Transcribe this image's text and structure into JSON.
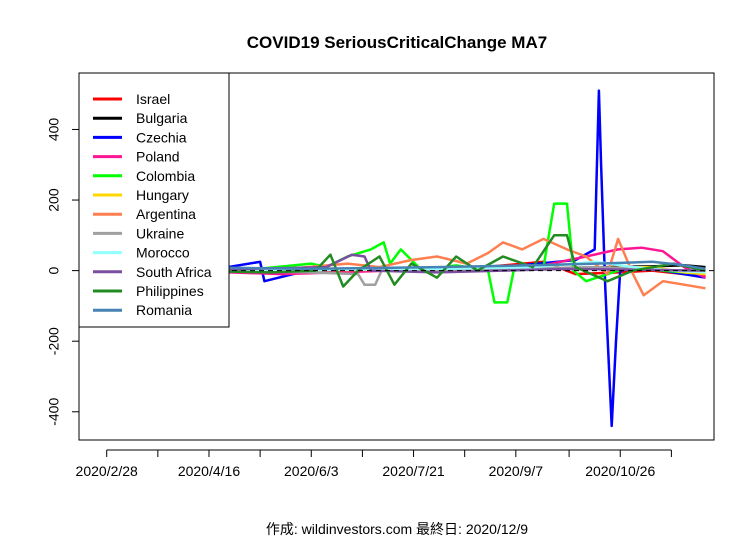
{
  "chart_data": {
    "type": "line",
    "title": "COVID19 SeriousCriticalChange MA7",
    "xlabel": "",
    "ylabel": "",
    "footer": "作成: wildinvestors.com 最終日: 2020/12/9",
    "x_range": [
      "2020-02-15",
      "2020-12-09"
    ],
    "ylim": [
      -480,
      560
    ],
    "x_ticks": [
      {
        "date": "2020-02-28",
        "label": "2020/2/28"
      },
      {
        "date": "2020-04-16",
        "label": "2020/4/16"
      },
      {
        "date": "2020-06-03",
        "label": "2020/6/3"
      },
      {
        "date": "2020-07-21",
        "label": "2020/7/21"
      },
      {
        "date": "2020-09-07",
        "label": "2020/9/7"
      },
      {
        "date": "2020-10-26",
        "label": "2020/10/26"
      }
    ],
    "x_minor_ticks": [
      "2020-03-23",
      "2020-05-10",
      "2020-06-27",
      "2020-08-14",
      "2020-10-02",
      "2020-11-19"
    ],
    "y_ticks": [
      -400,
      -200,
      0,
      200,
      400
    ],
    "reference_line": 0,
    "legend_position": "top-left",
    "series": [
      {
        "name": "Israel",
        "color": "#ff0000",
        "points": [
          [
            "2020-03-15",
            0
          ],
          [
            "2020-05-01",
            2
          ],
          [
            "2020-07-01",
            5
          ],
          [
            "2020-08-20",
            8
          ],
          [
            "2020-09-20",
            25
          ],
          [
            "2020-10-05",
            -10
          ],
          [
            "2020-10-25",
            -5
          ],
          [
            "2020-11-10",
            0
          ],
          [
            "2020-11-25",
            -10
          ],
          [
            "2020-12-05",
            -15
          ]
        ]
      },
      {
        "name": "Bulgaria",
        "color": "#000000",
        "points": [
          [
            "2020-04-01",
            0
          ],
          [
            "2020-07-01",
            2
          ],
          [
            "2020-09-15",
            5
          ],
          [
            "2020-10-20",
            10
          ],
          [
            "2020-11-10",
            12
          ],
          [
            "2020-11-25",
            15
          ],
          [
            "2020-12-05",
            10
          ]
        ]
      },
      {
        "name": "Czechia",
        "color": "#0000ff",
        "points": [
          [
            "2020-03-15",
            0
          ],
          [
            "2020-03-20",
            30
          ],
          [
            "2020-03-25",
            -20
          ],
          [
            "2020-04-01",
            20
          ],
          [
            "2020-04-15",
            0
          ],
          [
            "2020-05-10",
            25
          ],
          [
            "2020-05-12",
            -30
          ],
          [
            "2020-06-01",
            0
          ],
          [
            "2020-09-01",
            10
          ],
          [
            "2020-10-05",
            30
          ],
          [
            "2020-10-14",
            60
          ],
          [
            "2020-10-16",
            510
          ],
          [
            "2020-10-17",
            300
          ],
          [
            "2020-10-19",
            -50
          ],
          [
            "2020-10-22",
            -440
          ],
          [
            "2020-10-24",
            -200
          ],
          [
            "2020-10-26",
            0
          ],
          [
            "2020-11-05",
            10
          ],
          [
            "2020-11-20",
            -5
          ],
          [
            "2020-12-05",
            -20
          ]
        ]
      },
      {
        "name": "Poland",
        "color": "#ff1493",
        "points": [
          [
            "2020-04-01",
            0
          ],
          [
            "2020-05-20",
            -10
          ],
          [
            "2020-06-15",
            -5
          ],
          [
            "2020-08-01",
            5
          ],
          [
            "2020-09-20",
            15
          ],
          [
            "2020-10-10",
            40
          ],
          [
            "2020-10-25",
            60
          ],
          [
            "2020-11-05",
            65
          ],
          [
            "2020-11-15",
            55
          ],
          [
            "2020-11-25",
            10
          ],
          [
            "2020-12-05",
            -20
          ]
        ]
      },
      {
        "name": "Colombia",
        "color": "#00ff00",
        "points": [
          [
            "2020-03-20",
            0
          ],
          [
            "2020-05-01",
            0
          ],
          [
            "2020-06-03",
            20
          ],
          [
            "2020-06-10",
            10
          ],
          [
            "2020-06-20",
            40
          ],
          [
            "2020-07-01",
            60
          ],
          [
            "2020-07-07",
            80
          ],
          [
            "2020-07-10",
            20
          ],
          [
            "2020-07-15",
            60
          ],
          [
            "2020-07-25",
            0
          ],
          [
            "2020-08-10",
            15
          ],
          [
            "2020-08-25",
            0
          ],
          [
            "2020-08-28",
            -90
          ],
          [
            "2020-09-03",
            -90
          ],
          [
            "2020-09-06",
            0
          ],
          [
            "2020-09-20",
            10
          ],
          [
            "2020-09-25",
            190
          ],
          [
            "2020-10-01",
            190
          ],
          [
            "2020-10-04",
            0
          ],
          [
            "2020-10-10",
            -30
          ],
          [
            "2020-10-15",
            -20
          ],
          [
            "2020-10-30",
            10
          ],
          [
            "2020-11-15",
            0
          ],
          [
            "2020-12-05",
            -10
          ]
        ]
      },
      {
        "name": "Hungary",
        "color": "#ffd700",
        "points": [
          [
            "2020-04-01",
            0
          ],
          [
            "2020-07-01",
            2
          ],
          [
            "2020-09-15",
            5
          ],
          [
            "2020-10-20",
            8
          ],
          [
            "2020-11-10",
            10
          ],
          [
            "2020-11-25",
            -5
          ],
          [
            "2020-12-05",
            -10
          ]
        ]
      },
      {
        "name": "Argentina",
        "color": "#ff7f50",
        "points": [
          [
            "2020-05-15",
            0
          ],
          [
            "2020-06-01",
            10
          ],
          [
            "2020-06-20",
            20
          ],
          [
            "2020-07-05",
            10
          ],
          [
            "2020-07-20",
            30
          ],
          [
            "2020-08-01",
            40
          ],
          [
            "2020-08-15",
            20
          ],
          [
            "2020-08-25",
            50
          ],
          [
            "2020-09-01",
            80
          ],
          [
            "2020-09-10",
            60
          ],
          [
            "2020-09-20",
            90
          ],
          [
            "2020-10-01",
            60
          ],
          [
            "2020-10-10",
            40
          ],
          [
            "2020-10-20",
            -10
          ],
          [
            "2020-10-25",
            90
          ],
          [
            "2020-11-01",
            -10
          ],
          [
            "2020-11-06",
            -70
          ],
          [
            "2020-11-15",
            -30
          ],
          [
            "2020-11-25",
            -40
          ],
          [
            "2020-12-05",
            -50
          ]
        ]
      },
      {
        "name": "Ukraine",
        "color": "#a0a0a0",
        "points": [
          [
            "2020-04-20",
            0
          ],
          [
            "2020-06-01",
            -5
          ],
          [
            "2020-06-25",
            -10
          ],
          [
            "2020-06-28",
            -40
          ],
          [
            "2020-07-03",
            -40
          ],
          [
            "2020-07-06",
            0
          ],
          [
            "2020-09-01",
            5
          ],
          [
            "2020-10-15",
            10
          ],
          [
            "2020-11-10",
            5
          ],
          [
            "2020-12-05",
            -5
          ]
        ]
      },
      {
        "name": "Morocco",
        "color": "#90ffff",
        "points": [
          [
            "2020-05-01",
            0
          ],
          [
            "2020-08-01",
            5
          ],
          [
            "2020-09-15",
            10
          ],
          [
            "2020-10-15",
            25
          ],
          [
            "2020-11-01",
            10
          ],
          [
            "2020-11-20",
            0
          ],
          [
            "2020-12-05",
            -5
          ]
        ]
      },
      {
        "name": "South Africa",
        "color": "#7b4fa0",
        "points": [
          [
            "2020-04-01",
            0
          ],
          [
            "2020-06-10",
            10
          ],
          [
            "2020-06-22",
            45
          ],
          [
            "2020-06-28",
            40
          ],
          [
            "2020-07-01",
            0
          ],
          [
            "2020-08-01",
            -5
          ],
          [
            "2020-09-01",
            0
          ],
          [
            "2020-10-01",
            5
          ],
          [
            "2020-12-05",
            0
          ]
        ]
      },
      {
        "name": "Philippines",
        "color": "#228b22",
        "points": [
          [
            "2020-04-01",
            0
          ],
          [
            "2020-05-15",
            -5
          ],
          [
            "2020-06-05",
            0
          ],
          [
            "2020-06-12",
            45
          ],
          [
            "2020-06-18",
            -45
          ],
          [
            "2020-06-25",
            0
          ],
          [
            "2020-07-05",
            40
          ],
          [
            "2020-07-12",
            -40
          ],
          [
            "2020-07-20",
            20
          ],
          [
            "2020-08-01",
            -20
          ],
          [
            "2020-08-10",
            40
          ],
          [
            "2020-08-20",
            0
          ],
          [
            "2020-09-01",
            40
          ],
          [
            "2020-09-15",
            10
          ],
          [
            "2020-09-25",
            100
          ],
          [
            "2020-10-01",
            100
          ],
          [
            "2020-10-05",
            10
          ],
          [
            "2020-10-20",
            -30
          ],
          [
            "2020-11-01",
            0
          ],
          [
            "2020-11-20",
            20
          ],
          [
            "2020-12-05",
            0
          ]
        ]
      },
      {
        "name": "Romania",
        "color": "#4682b4",
        "points": [
          [
            "2020-03-20",
            0
          ],
          [
            "2020-04-01",
            10
          ],
          [
            "2020-06-01",
            5
          ],
          [
            "2020-08-01",
            10
          ],
          [
            "2020-09-15",
            15
          ],
          [
            "2020-10-15",
            20
          ],
          [
            "2020-11-10",
            25
          ],
          [
            "2020-11-25",
            15
          ],
          [
            "2020-12-05",
            5
          ]
        ]
      }
    ]
  }
}
